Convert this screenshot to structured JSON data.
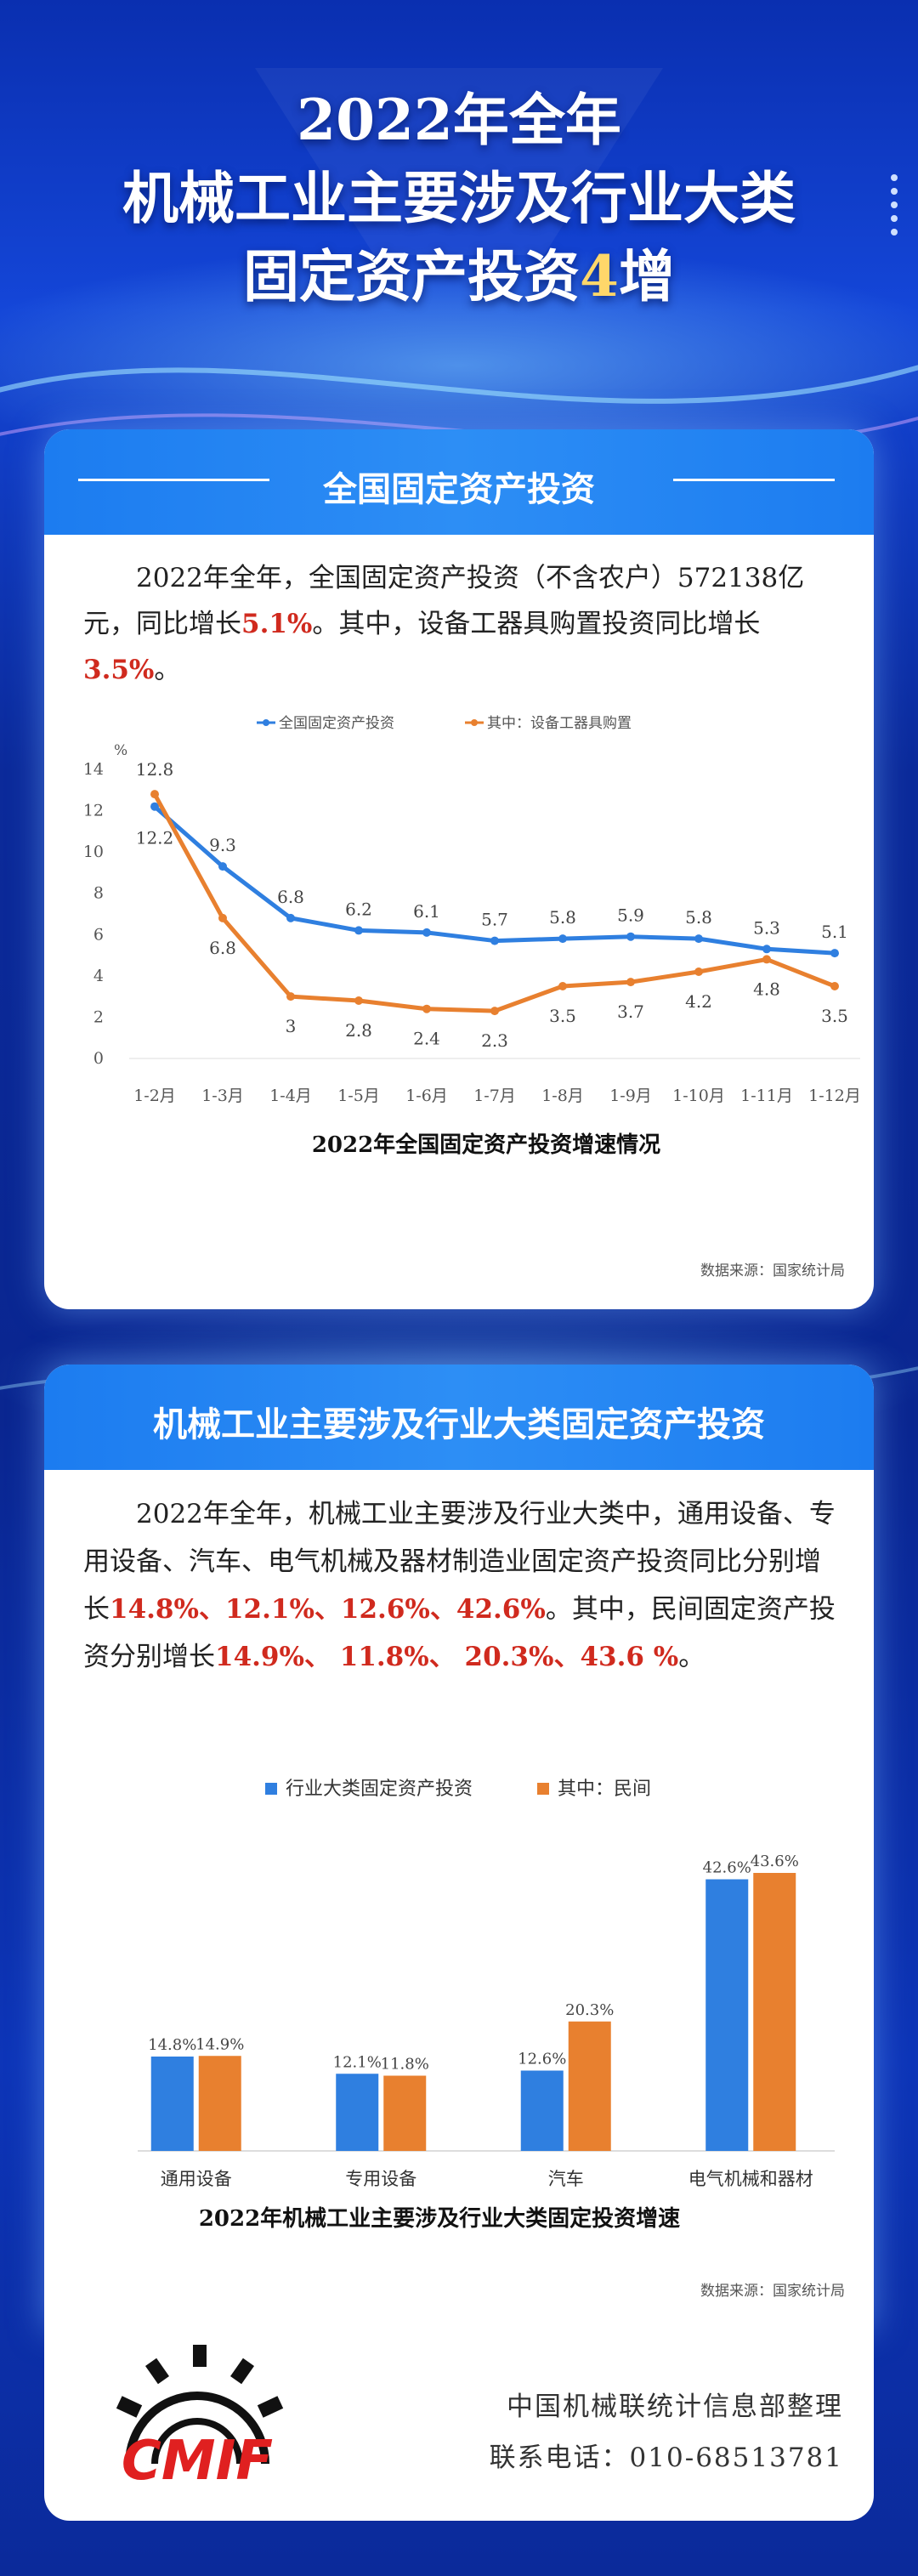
{
  "title": {
    "line1": "2022年全年",
    "line2": "机械工业主要涉及行业大类",
    "line3a": "固定资产投资",
    "line3b": "4",
    "line3c": "增"
  },
  "card1": {
    "heading": "全国固定资产投资",
    "text": {
      "p1": "2022年全年，全国固定资产投资（不含农户）572138亿元，同比增长",
      "v1": "5.1%",
      "p2": "。其中，设备工器具购置投资同比增长",
      "v2": "3.5%",
      "p3": "。"
    },
    "source": "数据来源：国家统计局"
  },
  "card2": {
    "heading": "机械工业主要涉及行业大类固定资产投资",
    "text": {
      "p1": "2022年全年，机械工业主要涉及行业大类中，通用设备、专用设备、汽车、电气机械及器材制造业固定资产投资同比分别增长",
      "v1": "14.8%、12.1%、12.6%、42.6%",
      "p2": "。其中，民间固定资产投资分别增长",
      "v2": "14.9%、 11.8%、 20.3%、43.6 %",
      "p3": "。"
    },
    "source": "数据来源：国家统计局"
  },
  "footer": {
    "org": "中国机械联统计信息部整理",
    "phone": "联系电话：010-68513781",
    "logo_text": "CMIF"
  },
  "colors": {
    "blue": "#2f7fe0",
    "orange": "#e8802f",
    "red": "#d02a1e",
    "header": "#1c7cf0"
  },
  "chart_data": [
    {
      "type": "line",
      "title": "2022年全国固定资产投资增速情况",
      "ylabel": "%",
      "x": [
        "1-2月",
        "1-3月",
        "1-4月",
        "1-5月",
        "1-6月",
        "1-7月",
        "1-8月",
        "1-9月",
        "1-10月",
        "1-11月",
        "1-12月"
      ],
      "ylim": [
        0,
        14
      ],
      "yticks": [
        0,
        2,
        4,
        6,
        8,
        10,
        12,
        14
      ],
      "legend": "top-center",
      "grid": false,
      "series": [
        {
          "name": "全国固定资产投资",
          "values": [
            12.2,
            9.3,
            6.8,
            6.2,
            6.1,
            5.7,
            5.8,
            5.9,
            5.8,
            5.3,
            5.1
          ]
        },
        {
          "name": "其中：设备工器具购置",
          "values": [
            12.8,
            6.8,
            3,
            2.8,
            2.4,
            2.3,
            3.5,
            3.7,
            4.2,
            4.8,
            3.5
          ]
        }
      ]
    },
    {
      "type": "bar",
      "title": "2022年机械工业主要涉及行业大类固定投资增速",
      "categories": [
        "通用设备",
        "专用设备",
        "汽车",
        "电气机械和器材"
      ],
      "legend": "top-center",
      "grid": false,
      "series": [
        {
          "name": "行业大类固定资产投资",
          "values": [
            14.8,
            12.1,
            12.6,
            42.6
          ],
          "labels": [
            "14.8%",
            "12.1%",
            "12.6%",
            "42.6%"
          ]
        },
        {
          "name": "其中：民间",
          "values": [
            14.9,
            11.8,
            20.3,
            43.6
          ],
          "labels": [
            "14.9%",
            "11.8%",
            "20.3%",
            "43.6%"
          ]
        }
      ]
    }
  ]
}
